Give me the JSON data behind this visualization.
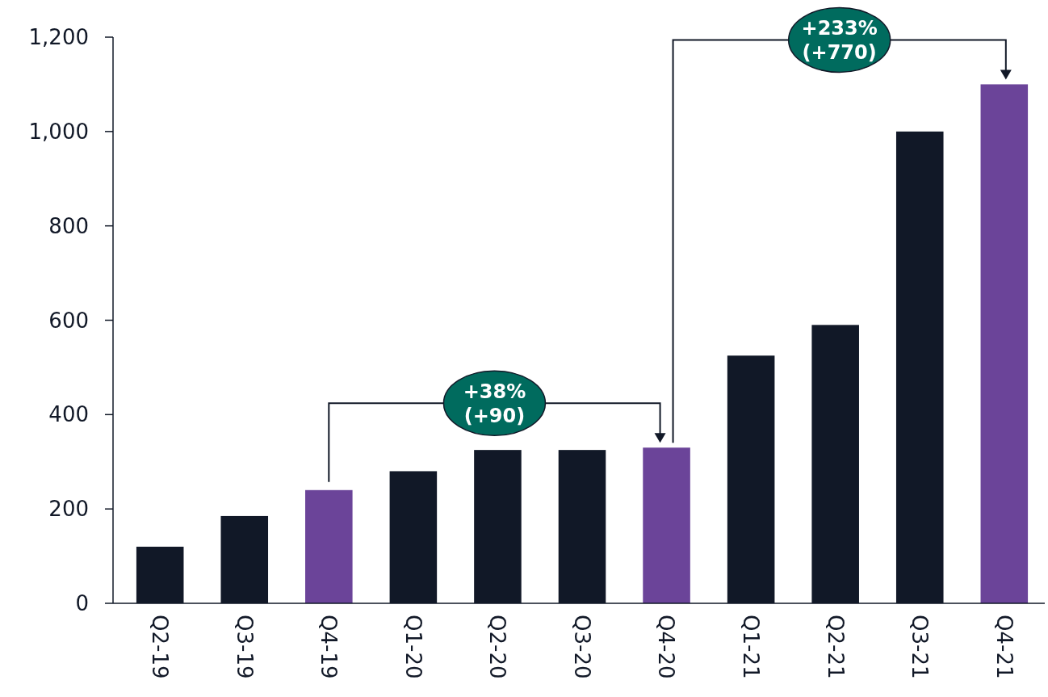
{
  "chart_data": {
    "type": "bar",
    "categories": [
      "Q2-19",
      "Q3-19",
      "Q4-19",
      "Q1-20",
      "Q2-20",
      "Q3-20",
      "Q4-20",
      "Q1-21",
      "Q2-21",
      "Q3-21",
      "Q4-21"
    ],
    "values": [
      120,
      185,
      240,
      280,
      325,
      325,
      330,
      525,
      590,
      1000,
      1100
    ],
    "colors": [
      "#111827",
      "#111827",
      "#6b4499",
      "#111827",
      "#111827",
      "#111827",
      "#6b4499",
      "#111827",
      "#111827",
      "#111827",
      "#6b4499"
    ],
    "ylim": [
      0,
      1200
    ],
    "yticks": [
      0,
      {
        "value": 200,
        "label": "200"
      },
      {
        "value": 400,
        "label": "400"
      },
      {
        "value": 600,
        "label": "600"
      },
      {
        "value": 800,
        "label": "800"
      },
      {
        "value": 1000,
        "label": "1,000"
      },
      {
        "value": 1200,
        "label": "1,200"
      }
    ],
    "annotations": [
      "+38% (+90)",
      "+233% (+770)"
    ]
  }
}
